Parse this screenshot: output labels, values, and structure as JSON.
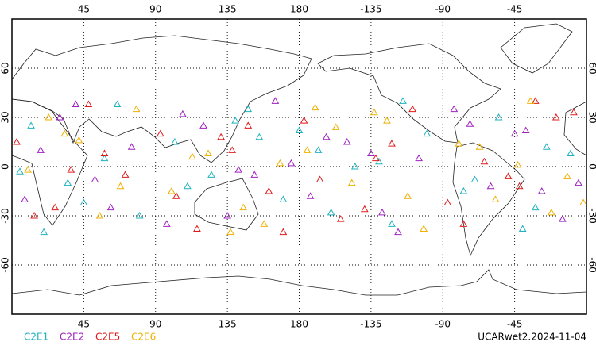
{
  "chart_data": {
    "type": "scatter",
    "title": "UCARwet2.2024-11-04",
    "xlim": [
      0,
      360
    ],
    "ylim": [
      -90,
      90
    ],
    "xticks": [
      45,
      90,
      135,
      180,
      -135,
      -90,
      -45
    ],
    "yticks": [
      60,
      30,
      0,
      -30,
      -60
    ],
    "grid": true,
    "series": [
      {
        "name": "C2E1",
        "color": "#1fb3c0",
        "x": [
          12,
          35,
          58,
          80,
          102,
          125,
          148,
          170,
          192,
          215,
          238,
          260,
          283,
          305,
          328,
          350,
          20,
          66,
          110,
          155,
          200,
          245,
          290,
          335,
          45,
          140,
          230,
          320,
          5,
          180
        ],
        "values": [
          25,
          -10,
          5,
          -30,
          15,
          -5,
          35,
          -20,
          10,
          0,
          -35,
          20,
          -15,
          30,
          -25,
          8,
          -40,
          38,
          -12,
          18,
          -28,
          40,
          -8,
          12,
          -22,
          28,
          3,
          -38,
          -3,
          22
        ]
      },
      {
        "name": "C2E2",
        "color": "#a020c0",
        "x": [
          8,
          30,
          52,
          75,
          97,
          120,
          142,
          165,
          187,
          210,
          232,
          255,
          277,
          300,
          322,
          345,
          18,
          62,
          107,
          152,
          197,
          242,
          287,
          332,
          40,
          135,
          225,
          315,
          355,
          175
        ],
        "values": [
          -20,
          30,
          -8,
          12,
          -35,
          25,
          -2,
          40,
          -18,
          15,
          -28,
          5,
          35,
          -12,
          22,
          -32,
          10,
          -25,
          32,
          -5,
          18,
          -40,
          26,
          -15,
          38,
          -30,
          8,
          20,
          -10,
          2
        ]
      },
      {
        "name": "C2E5",
        "color": "#e01a1a",
        "x": [
          3,
          27,
          48,
          71,
          93,
          116,
          138,
          161,
          183,
          206,
          228,
          251,
          273,
          296,
          318,
          341,
          14,
          58,
          103,
          148,
          193,
          238,
          283,
          328,
          37,
          131,
          221,
          311,
          352,
          170
        ],
        "values": [
          15,
          -25,
          38,
          -5,
          20,
          -38,
          10,
          -15,
          28,
          -32,
          5,
          35,
          -22,
          3,
          -12,
          30,
          -30,
          8,
          -18,
          25,
          -8,
          14,
          -35,
          40,
          -2,
          18,
          -26,
          -6,
          33,
          -40
        ]
      },
      {
        "name": "C2E6",
        "color": "#f0b000",
        "x": [
          10,
          33,
          55,
          78,
          100,
          123,
          145,
          168,
          190,
          213,
          235,
          258,
          280,
          303,
          325,
          348,
          23,
          68,
          113,
          158,
          203,
          248,
          293,
          338,
          42,
          137,
          227,
          317,
          358,
          185
        ],
        "values": [
          -2,
          20,
          -30,
          35,
          -15,
          8,
          -25,
          2,
          36,
          -10,
          28,
          -38,
          14,
          -20,
          40,
          -6,
          30,
          -12,
          6,
          -35,
          24,
          -18,
          12,
          -28,
          16,
          -40,
          33,
          1,
          -22,
          10
        ]
      }
    ]
  }
}
